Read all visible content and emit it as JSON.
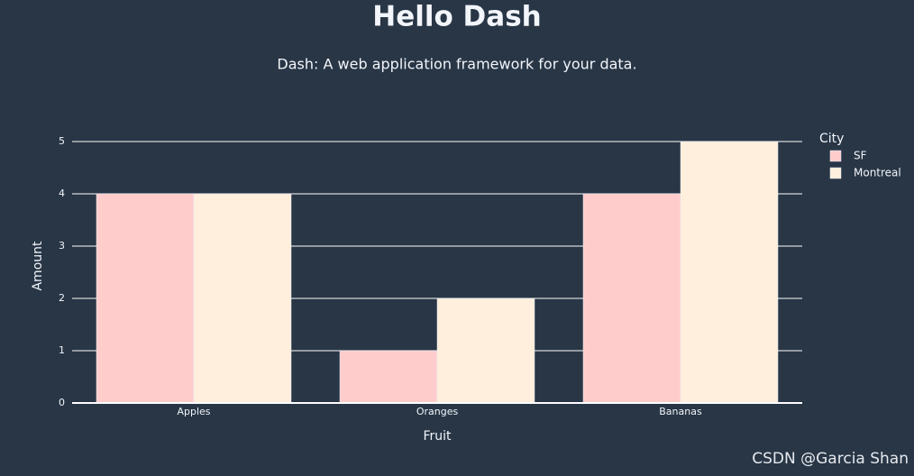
{
  "header": {
    "title": "Hello Dash",
    "subtitle": "Dash: A web application framework for your data."
  },
  "chart_data": {
    "type": "bar",
    "x_label": "Fruit",
    "y_label": "Amount",
    "categories": [
      "Apples",
      "Oranges",
      "Bananas"
    ],
    "series": [
      {
        "name": "SF",
        "color": "#ffcccc",
        "values": [
          4,
          1,
          4
        ]
      },
      {
        "name": "Montreal",
        "color": "#ffefdc",
        "values": [
          4,
          2,
          5
        ]
      }
    ],
    "legend_title": "City",
    "legend_position": "right",
    "ylim": [
      0,
      5
    ],
    "yticks": [
      0,
      1,
      2,
      3,
      4,
      5
    ],
    "grid": true
  },
  "watermark": "CSDN @Garcia Shan"
}
